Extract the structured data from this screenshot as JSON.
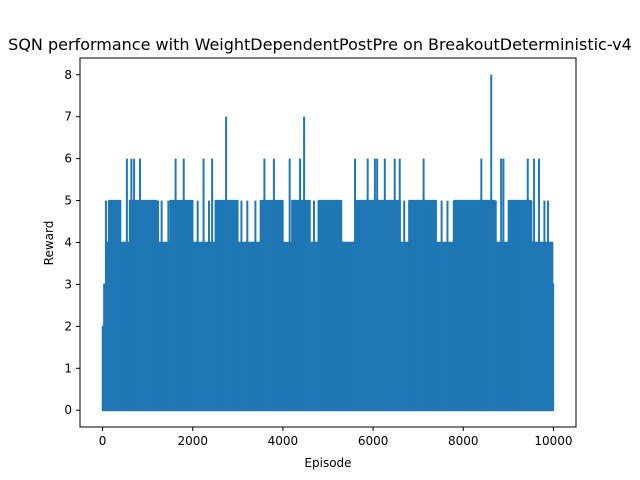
{
  "chart_data": {
    "type": "line",
    "title": "SQN performance with WeightDependentPostPre on BreakoutDeterministic-v4",
    "xlabel": "Episode",
    "ylabel": "Reward",
    "xlim": [
      -500,
      10500
    ],
    "ylim": [
      -0.4,
      8.4
    ],
    "xticks": [
      0,
      2000,
      4000,
      6000,
      8000,
      10000
    ],
    "yticks": [
      0,
      1,
      2,
      3,
      4,
      5,
      6,
      7,
      8
    ],
    "grid": false,
    "color": "#1f77b4",
    "series": [
      {
        "x_range": [
          0,
          9999
        ],
        "band_upper": [
          [
            0,
            2
          ],
          [
            30,
            3
          ],
          [
            90,
            4
          ],
          [
            150,
            5
          ],
          [
            400,
            4
          ],
          [
            600,
            5
          ],
          [
            1200,
            4
          ],
          [
            1500,
            5
          ],
          [
            2000,
            4
          ],
          [
            2500,
            5
          ],
          [
            3000,
            4
          ],
          [
            3500,
            5
          ],
          [
            4000,
            4
          ],
          [
            4200,
            5
          ],
          [
            4600,
            4
          ],
          [
            4800,
            5
          ],
          [
            5300,
            4
          ],
          [
            5600,
            5
          ],
          [
            6600,
            4
          ],
          [
            6800,
            5
          ],
          [
            7400,
            4
          ],
          [
            7800,
            5
          ],
          [
            8700,
            4
          ],
          [
            9000,
            5
          ],
          [
            9500,
            4
          ],
          [
            9980,
            3
          ]
        ],
        "spikes": [
          {
            "x": 75,
            "y": 5
          },
          {
            "x": 140,
            "y": 5
          },
          {
            "x": 210,
            "y": 5
          },
          {
            "x": 260,
            "y": 4
          },
          {
            "x": 380,
            "y": 5
          },
          {
            "x": 540,
            "y": 6
          },
          {
            "x": 640,
            "y": 6
          },
          {
            "x": 700,
            "y": 6
          },
          {
            "x": 830,
            "y": 6
          },
          {
            "x": 920,
            "y": 5
          },
          {
            "x": 1020,
            "y": 5
          },
          {
            "x": 1130,
            "y": 5
          },
          {
            "x": 1230,
            "y": 5
          },
          {
            "x": 1310,
            "y": 5
          },
          {
            "x": 1460,
            "y": 5
          },
          {
            "x": 1620,
            "y": 6
          },
          {
            "x": 1800,
            "y": 6
          },
          {
            "x": 1990,
            "y": 5
          },
          {
            "x": 2110,
            "y": 5
          },
          {
            "x": 2240,
            "y": 6
          },
          {
            "x": 2360,
            "y": 5
          },
          {
            "x": 2430,
            "y": 6
          },
          {
            "x": 2560,
            "y": 5
          },
          {
            "x": 2740,
            "y": 7
          },
          {
            "x": 2870,
            "y": 5
          },
          {
            "x": 2990,
            "y": 5
          },
          {
            "x": 3080,
            "y": 5
          },
          {
            "x": 3210,
            "y": 5
          },
          {
            "x": 3390,
            "y": 5
          },
          {
            "x": 3590,
            "y": 6
          },
          {
            "x": 3680,
            "y": 5
          },
          {
            "x": 3800,
            "y": 6
          },
          {
            "x": 3960,
            "y": 5
          },
          {
            "x": 4150,
            "y": 6
          },
          {
            "x": 4260,
            "y": 5
          },
          {
            "x": 4380,
            "y": 6
          },
          {
            "x": 4470,
            "y": 7
          },
          {
            "x": 4570,
            "y": 5
          },
          {
            "x": 4690,
            "y": 5
          },
          {
            "x": 4790,
            "y": 5
          },
          {
            "x": 4900,
            "y": 5
          },
          {
            "x": 5050,
            "y": 5
          },
          {
            "x": 5260,
            "y": 5
          },
          {
            "x": 5490,
            "y": 4
          },
          {
            "x": 5600,
            "y": 6
          },
          {
            "x": 5720,
            "y": 5
          },
          {
            "x": 5880,
            "y": 6
          },
          {
            "x": 5960,
            "y": 5
          },
          {
            "x": 6040,
            "y": 6
          },
          {
            "x": 6090,
            "y": 6
          },
          {
            "x": 6180,
            "y": 5
          },
          {
            "x": 6260,
            "y": 6
          },
          {
            "x": 6360,
            "y": 5
          },
          {
            "x": 6480,
            "y": 6
          },
          {
            "x": 6590,
            "y": 6
          },
          {
            "x": 6690,
            "y": 5
          },
          {
            "x": 6800,
            "y": 5
          },
          {
            "x": 6910,
            "y": 5
          },
          {
            "x": 7120,
            "y": 6
          },
          {
            "x": 7240,
            "y": 5
          },
          {
            "x": 7380,
            "y": 5
          },
          {
            "x": 7520,
            "y": 5
          },
          {
            "x": 7650,
            "y": 5
          },
          {
            "x": 7790,
            "y": 5
          },
          {
            "x": 7960,
            "y": 5
          },
          {
            "x": 8090,
            "y": 5
          },
          {
            "x": 8250,
            "y": 5
          },
          {
            "x": 8400,
            "y": 6
          },
          {
            "x": 8560,
            "y": 5
          },
          {
            "x": 8620,
            "y": 8
          },
          {
            "x": 8720,
            "y": 5
          },
          {
            "x": 8840,
            "y": 6
          },
          {
            "x": 8890,
            "y": 6
          },
          {
            "x": 9030,
            "y": 5
          },
          {
            "x": 9230,
            "y": 5
          },
          {
            "x": 9320,
            "y": 5
          },
          {
            "x": 9430,
            "y": 6
          },
          {
            "x": 9510,
            "y": 5
          },
          {
            "x": 9570,
            "y": 6
          },
          {
            "x": 9680,
            "y": 6
          },
          {
            "x": 9800,
            "y": 5
          },
          {
            "x": 9880,
            "y": 5
          },
          {
            "x": 9960,
            "y": 4
          }
        ]
      }
    ]
  }
}
